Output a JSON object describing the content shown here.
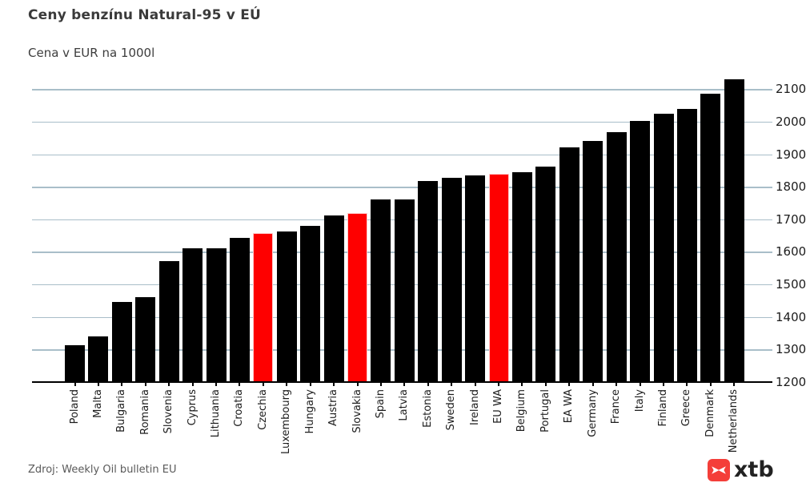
{
  "page": {
    "title": "Ceny benzínu Natural-95 v EÚ",
    "subtitle": "Cena v EUR na 1000l",
    "source": "Zdroj: Weekly Oil bulletin EU",
    "logo_text": "xtb"
  },
  "colors": {
    "bar_default": "#000000",
    "bar_highlight": "#fe0000",
    "highlight_border": "#ffc9c9",
    "gridline": "#a9bec9",
    "axis": "#000000",
    "tick_label": "#1c1c1c",
    "logo_red": "#f43e39"
  },
  "chart_data": {
    "type": "bar",
    "title": "Ceny benzínu Natural-95 v EÚ",
    "subtitle": "Cena v EUR na 1000l",
    "ylabel": "EUR na 1000l",
    "xlabel": "",
    "grid": true,
    "y_axis_side": "right",
    "x_tick_rotation": 90,
    "ylim": [
      1200,
      2140
    ],
    "yticks": [
      1200,
      1300,
      1400,
      1500,
      1600,
      1700,
      1800,
      1900,
      2000,
      2100
    ],
    "categories": [
      "Poland",
      "Malta",
      "Bulgaria",
      "Romania",
      "Slovenia",
      "Cyprus",
      "Lithuania",
      "Croatia",
      "Czechia",
      "Luxembourg",
      "Hungary",
      "Austria",
      "Slovakia",
      "Spain",
      "Latvia",
      "Estonia",
      "Sweden",
      "Ireland",
      "EU WA",
      "Belgium",
      "Portugal",
      "EA WA",
      "Germany",
      "France",
      "Italy",
      "Finland",
      "Greece",
      "Denmark",
      "Netherlands"
    ],
    "values": [
      1314,
      1341,
      1446,
      1462,
      1571,
      1612,
      1612,
      1642,
      1658,
      1663,
      1681,
      1713,
      1719,
      1760,
      1760,
      1817,
      1827,
      1836,
      1840,
      1844,
      1863,
      1921,
      1941,
      1968,
      2003,
      2025,
      2040,
      2086,
      2130
    ],
    "highlight_indices": [
      8,
      12,
      18
    ],
    "highlighted_categories": [
      "Czechia",
      "Slovakia",
      "EU WA"
    ],
    "source": "Zdroj: Weekly Oil bulletin EU"
  }
}
